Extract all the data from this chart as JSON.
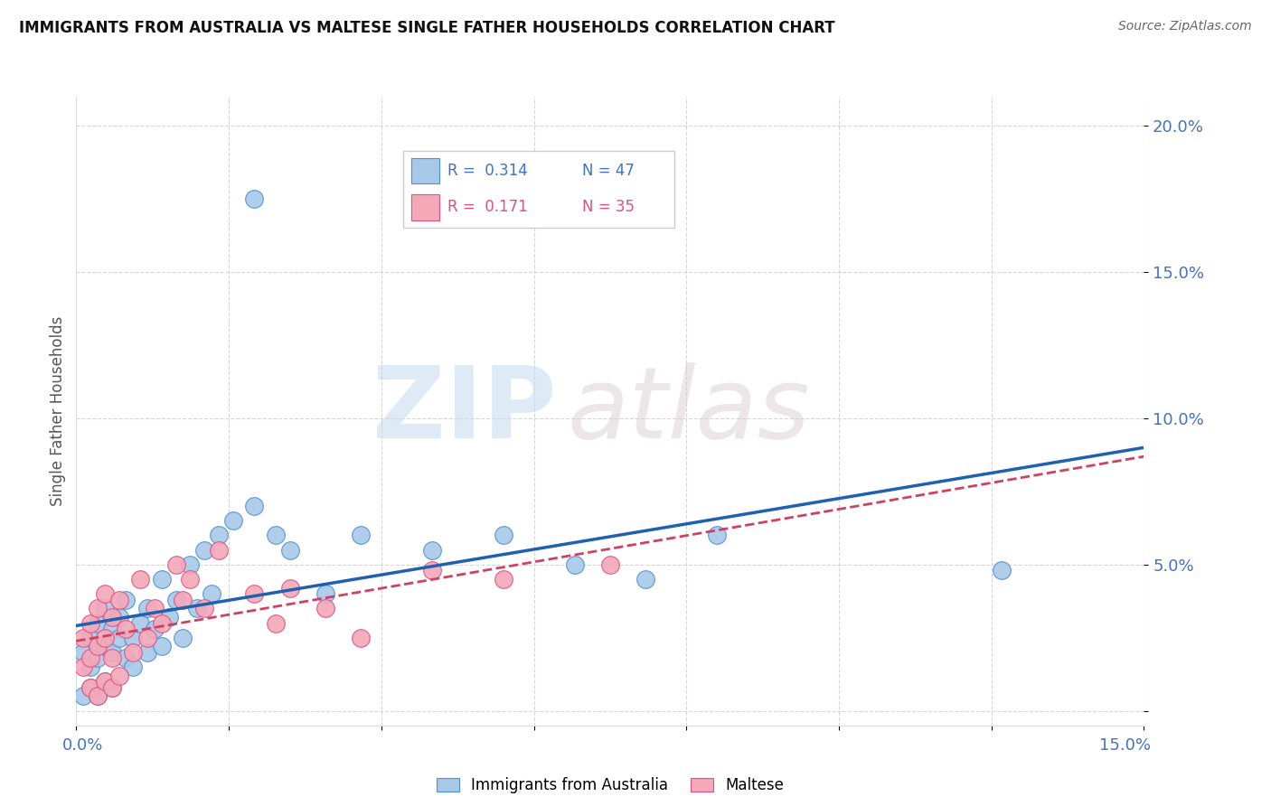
{
  "title": "IMMIGRANTS FROM AUSTRALIA VS MALTESE SINGLE FATHER HOUSEHOLDS CORRELATION CHART",
  "source": "Source: ZipAtlas.com",
  "ylabel": "Single Father Households",
  "xlim": [
    0,
    0.15
  ],
  "ylim": [
    -0.005,
    0.21
  ],
  "ytick_values": [
    0.0,
    0.05,
    0.1,
    0.15,
    0.2
  ],
  "ytick_labels": [
    "",
    "5.0%",
    "10.0%",
    "15.0%",
    "20.0%"
  ],
  "legend_blue_label": "Immigrants from Australia",
  "legend_pink_label": "Maltese",
  "legend_R_blue": "R =  0.314",
  "legend_N_blue": "N = 47",
  "legend_R_pink": "R =  0.171",
  "legend_N_pink": "N = 35",
  "blue_color": "#a8c8e8",
  "blue_edge_color": "#4a90d9",
  "pink_color": "#f4a8b8",
  "pink_edge_color": "#e05080",
  "trend_blue_color": "#2060b0",
  "trend_pink_color": "#d04060",
  "blue_scatter_x": [
    0.001,
    0.002,
    0.002,
    0.003,
    0.003,
    0.004,
    0.004,
    0.005,
    0.005,
    0.006,
    0.006,
    0.007,
    0.007,
    0.008,
    0.008,
    0.009,
    0.01,
    0.01,
    0.011,
    0.012,
    0.012,
    0.013,
    0.014,
    0.015,
    0.016,
    0.017,
    0.018,
    0.019,
    0.02,
    0.022,
    0.025,
    0.028,
    0.03,
    0.035,
    0.04,
    0.05,
    0.06,
    0.07,
    0.08,
    0.09,
    0.001,
    0.002,
    0.003,
    0.004,
    0.005,
    0.13,
    0.025
  ],
  "blue_scatter_y": [
    0.02,
    0.015,
    0.025,
    0.018,
    0.03,
    0.022,
    0.035,
    0.02,
    0.028,
    0.025,
    0.032,
    0.018,
    0.038,
    0.015,
    0.025,
    0.03,
    0.02,
    0.035,
    0.028,
    0.022,
    0.045,
    0.032,
    0.038,
    0.025,
    0.05,
    0.035,
    0.055,
    0.04,
    0.06,
    0.065,
    0.07,
    0.06,
    0.055,
    0.04,
    0.06,
    0.055,
    0.06,
    0.05,
    0.045,
    0.06,
    0.005,
    0.008,
    0.005,
    0.01,
    0.008,
    0.048,
    0.175
  ],
  "pink_scatter_x": [
    0.001,
    0.001,
    0.002,
    0.002,
    0.003,
    0.003,
    0.004,
    0.004,
    0.005,
    0.005,
    0.006,
    0.007,
    0.008,
    0.009,
    0.01,
    0.011,
    0.012,
    0.014,
    0.015,
    0.016,
    0.018,
    0.02,
    0.025,
    0.028,
    0.03,
    0.035,
    0.04,
    0.05,
    0.06,
    0.075,
    0.002,
    0.003,
    0.004,
    0.005,
    0.006
  ],
  "pink_scatter_y": [
    0.015,
    0.025,
    0.018,
    0.03,
    0.022,
    0.035,
    0.025,
    0.04,
    0.018,
    0.032,
    0.038,
    0.028,
    0.02,
    0.045,
    0.025,
    0.035,
    0.03,
    0.05,
    0.038,
    0.045,
    0.035,
    0.055,
    0.04,
    0.03,
    0.042,
    0.035,
    0.025,
    0.048,
    0.045,
    0.05,
    0.008,
    0.005,
    0.01,
    0.008,
    0.012
  ]
}
